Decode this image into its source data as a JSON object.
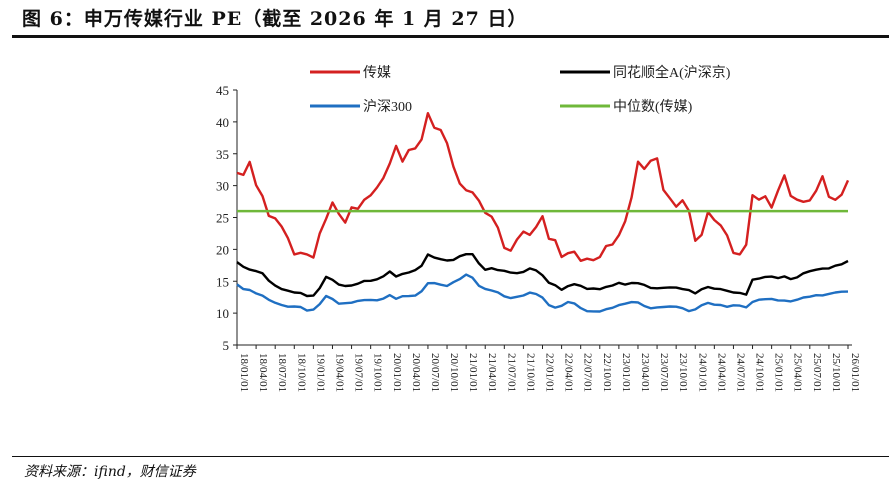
{
  "header": {
    "title": "图 6：申万传媒行业 PE（截至 2026 年 1 月 27 日）"
  },
  "footer": {
    "source": "资料来源：ifind，财信证券"
  },
  "chart_data": {
    "type": "line",
    "title": "申万传媒行业 PE（截至 2026 年 1 月 27 日）",
    "ylim": [
      5,
      45
    ],
    "yticks": [
      5,
      10,
      15,
      20,
      25,
      30,
      35,
      40,
      45
    ],
    "xticks": [
      "18/01/01",
      "18/04/01",
      "18/07/01",
      "18/10/01",
      "19/01/01",
      "19/04/01",
      "19/07/01",
      "19/10/01",
      "20/01/01",
      "20/04/01",
      "20/07/01",
      "20/10/01",
      "21/01/01",
      "21/04/01",
      "21/07/01",
      "21/10/01",
      "22/01/01",
      "22/04/01",
      "22/07/01",
      "22/10/01",
      "23/01/01",
      "23/04/01",
      "23/07/01",
      "23/10/01",
      "24/01/01",
      "24/04/01",
      "24/07/01",
      "24/10/01",
      "25/01/01",
      "25/04/01",
      "25/07/01",
      "25/10/01",
      "26/01/01"
    ],
    "x_unit": "monthly from 2018-01 to 2026-01",
    "legend_position": "top",
    "series": [
      {
        "name": "传媒",
        "color": "#d42020",
        "values": [
          32,
          31,
          33,
          30,
          29,
          26,
          25,
          23,
          21,
          19,
          20,
          20,
          19,
          22,
          24,
          27,
          26,
          25,
          27,
          26,
          27,
          28,
          30,
          32,
          34,
          36,
          33,
          35,
          36,
          38,
          42,
          39,
          38,
          36,
          33,
          31,
          30,
          29,
          27,
          25,
          25,
          24,
          21,
          20,
          21,
          22,
          22,
          24,
          26,
          22,
          21,
          18,
          19,
          20,
          19,
          19,
          18,
          18,
          20,
          21,
          23,
          25,
          28,
          33,
          32,
          34,
          35,
          30,
          28,
          26,
          27,
          26,
          22,
          23,
          26,
          24,
          23,
          22,
          20,
          20,
          21,
          28,
          27,
          28,
          27,
          30,
          32,
          28,
          27,
          27,
          28,
          30,
          32,
          28,
          27,
          28,
          31
        ]
      },
      {
        "name": "同花顺全A(沪深京)",
        "color": "#000000",
        "values": [
          18,
          17.5,
          17,
          16.5,
          16,
          15,
          14.5,
          14,
          13.5,
          13,
          13,
          12.8,
          13,
          14,
          15.5,
          15,
          14.5,
          14.5,
          14.5,
          14.5,
          14.8,
          15,
          15.5,
          16,
          16.5,
          15.5,
          16,
          16.5,
          17,
          17.5,
          19,
          18.5,
          18.5,
          18.5,
          18.5,
          18.8,
          19,
          19.2,
          18,
          17,
          17,
          16.5,
          16.5,
          16.5,
          16.5,
          16.5,
          16.8,
          16.5,
          16,
          15,
          14.5,
          13.5,
          14,
          14.5,
          14.5,
          14,
          13.8,
          13.5,
          14,
          14.5,
          15,
          14.5,
          14.5,
          14.5,
          14.5,
          14.2,
          14,
          13.8,
          13.8,
          14,
          14,
          13.8,
          13,
          13.5,
          14,
          14,
          14,
          13.5,
          13,
          13,
          13,
          15.5,
          15.5,
          15.5,
          15.5,
          15.5,
          16,
          15.5,
          15.5,
          16,
          16.5,
          17,
          17.2,
          17,
          17.2,
          17.5,
          18.3
        ]
      },
      {
        "name": "沪深300",
        "color": "#1f6fc2",
        "values": [
          14.5,
          14,
          13.8,
          13,
          12.5,
          12,
          11.8,
          11.5,
          11,
          10.8,
          10.8,
          10.5,
          10.8,
          11.5,
          12.5,
          12,
          11.5,
          11.8,
          11.8,
          11.8,
          11.8,
          12,
          12.2,
          12.5,
          12.8,
          12,
          12.5,
          12.8,
          13,
          13.5,
          14.5,
          14.5,
          14.5,
          14.5,
          15,
          15.2,
          15.8,
          15.5,
          14.5,
          14,
          13.5,
          13,
          12.5,
          12.5,
          12.8,
          12.8,
          13,
          12.8,
          12.5,
          11.5,
          11,
          11,
          11.5,
          11.5,
          11,
          10.5,
          10.2,
          10,
          10.5,
          11,
          11.5,
          11.5,
          11.5,
          11.5,
          11.2,
          11,
          11,
          10.8,
          10.8,
          11,
          11,
          10.5,
          10.5,
          11,
          11.5,
          11.5,
          11.5,
          11,
          11,
          11,
          11,
          12,
          12.2,
          12,
          12,
          12,
          12.2,
          12,
          12,
          12.2,
          12.5,
          13,
          13,
          13,
          13,
          13.2,
          13.5
        ]
      },
      {
        "name": "中位数(传媒)",
        "color": "#6fb83a",
        "values": [
          26,
          26
        ]
      }
    ]
  }
}
